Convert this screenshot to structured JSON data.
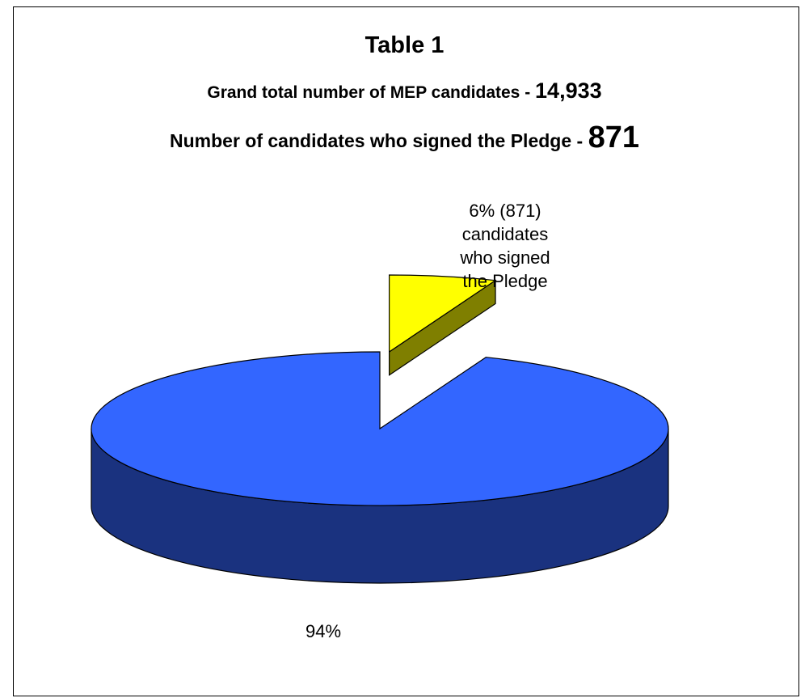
{
  "chart_data": {
    "type": "pie",
    "title": "Table 1",
    "subtitle_lines": [
      {
        "text": "Grand total number of MEP candidates - ",
        "value": "14,933"
      },
      {
        "text": "Number of candidates who signed the Pledge - ",
        "value": "871"
      }
    ],
    "slices": [
      {
        "value": 94,
        "label_lines": [
          "94%"
        ],
        "color": "#3366ff",
        "side_color": "#1a327f",
        "exploded": false
      },
      {
        "value": 6,
        "label_lines": [
          "6% (871)",
          "candidates",
          "who signed",
          "the Pledge"
        ],
        "color": "#ffff00",
        "side_color": "#7f7f00",
        "exploded": true
      }
    ],
    "style": "3d-exploded",
    "legend": "none"
  }
}
